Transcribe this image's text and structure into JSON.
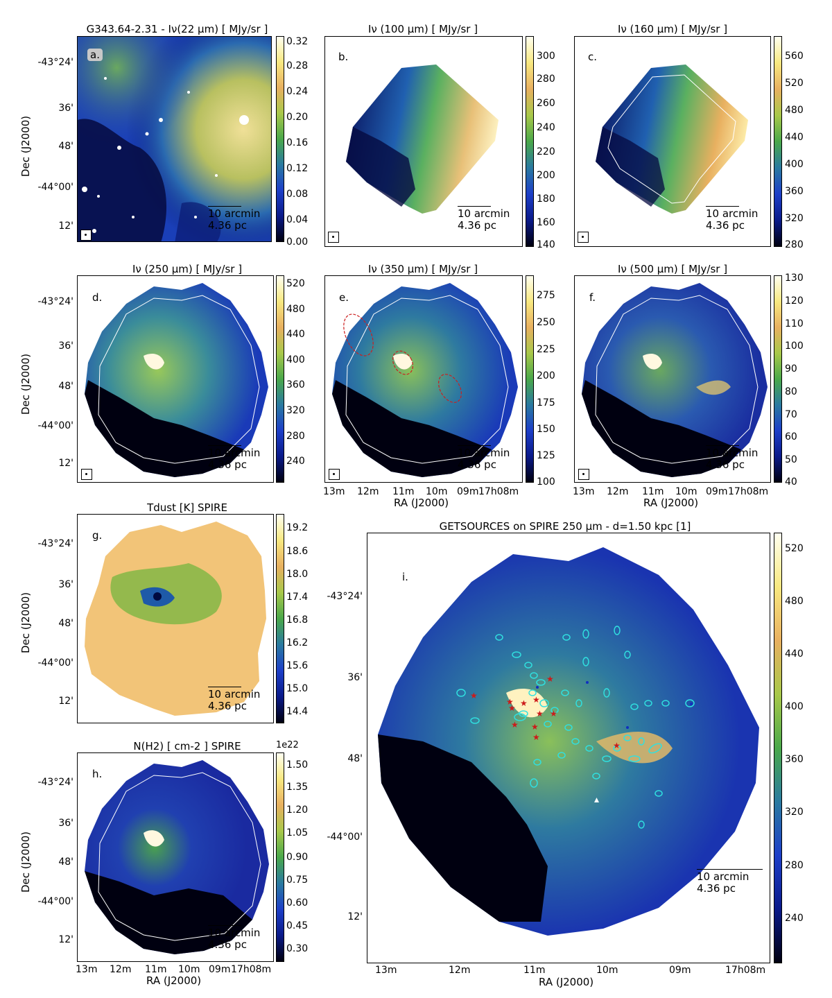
{
  "colors": {
    "cmap": [
      "#000010",
      "#0a1a8a",
      "#1d3fc8",
      "#2a7aa0",
      "#4aa84a",
      "#a8c84a",
      "#e8b060",
      "#f8e880",
      "#fffff0"
    ],
    "ellipse_red": "#cc1f1f",
    "ellipse_cyan": "#30e0e0",
    "star_red": "#cc1a1a",
    "contour": "#ffffff"
  },
  "scalebar": {
    "line1": "10 arcmin",
    "line2": "4.36 pc"
  },
  "axes": {
    "dec_title": "Dec (J2000)",
    "ra_title": "RA (J2000)",
    "dec_ticks": [
      "-43°24'",
      "36'",
      "48'",
      "-44°00'",
      "12'"
    ],
    "ra_ticks": [
      "13m",
      "12m",
      "11m",
      "10m",
      "09m",
      "17h08m"
    ]
  },
  "panels": {
    "a": {
      "title": "G343.64-2.31 - Iν(22 μm)  [ MJy/sr ]",
      "letter": "a.",
      "cbar": [
        "0.32",
        "0.28",
        "0.24",
        "0.20",
        "0.16",
        "0.12",
        "0.08",
        "0.04",
        "0.00"
      ]
    },
    "b": {
      "title": "Iν (100 μm) [ MJy/sr ]",
      "letter": "b.",
      "cbar": [
        "300",
        "280",
        "260",
        "240",
        "220",
        "200",
        "180",
        "160",
        "140"
      ]
    },
    "c": {
      "title": "Iν (160 μm) [ MJy/sr ]",
      "letter": "c.",
      "cbar": [
        "560",
        "520",
        "480",
        "440",
        "400",
        "360",
        "320",
        "280"
      ]
    },
    "d": {
      "title": "Iν (250 μm) [ MJy/sr ]",
      "letter": "d.",
      "cbar": [
        "520",
        "480",
        "440",
        "400",
        "360",
        "320",
        "280",
        "240"
      ]
    },
    "e": {
      "title": "Iν (350 μm) [ MJy/sr ]",
      "letter": "e.",
      "cbar": [
        "275",
        "250",
        "225",
        "200",
        "175",
        "150",
        "125",
        "100"
      ]
    },
    "f": {
      "title": "Iν (500 μm) [ MJy/sr ]",
      "letter": "f.",
      "cbar": [
        "130",
        "120",
        "110",
        "100",
        "90",
        "80",
        "70",
        "60",
        "50",
        "40"
      ]
    },
    "g": {
      "title": "Tdust [K] SPIRE",
      "letter": "g.",
      "cbar": [
        "19.2",
        "18.6",
        "18.0",
        "17.4",
        "16.8",
        "16.2",
        "15.6",
        "15.0",
        "14.4"
      ]
    },
    "h": {
      "title": "N(H2) [ cm-2 ] SPIRE",
      "letter": "h.",
      "cbar": [
        "1.50",
        "1.35",
        "1.20",
        "1.05",
        "0.90",
        "0.75",
        "0.60",
        "0.45",
        "0.30"
      ],
      "cbar_exp": "1e22"
    },
    "i": {
      "title": "GETSOURCES on SPIRE 250 μm  -  d=1.50 kpc [1]",
      "letter": "i.",
      "cbar": [
        "520",
        "480",
        "440",
        "400",
        "360",
        "320",
        "280",
        "240"
      ]
    }
  }
}
